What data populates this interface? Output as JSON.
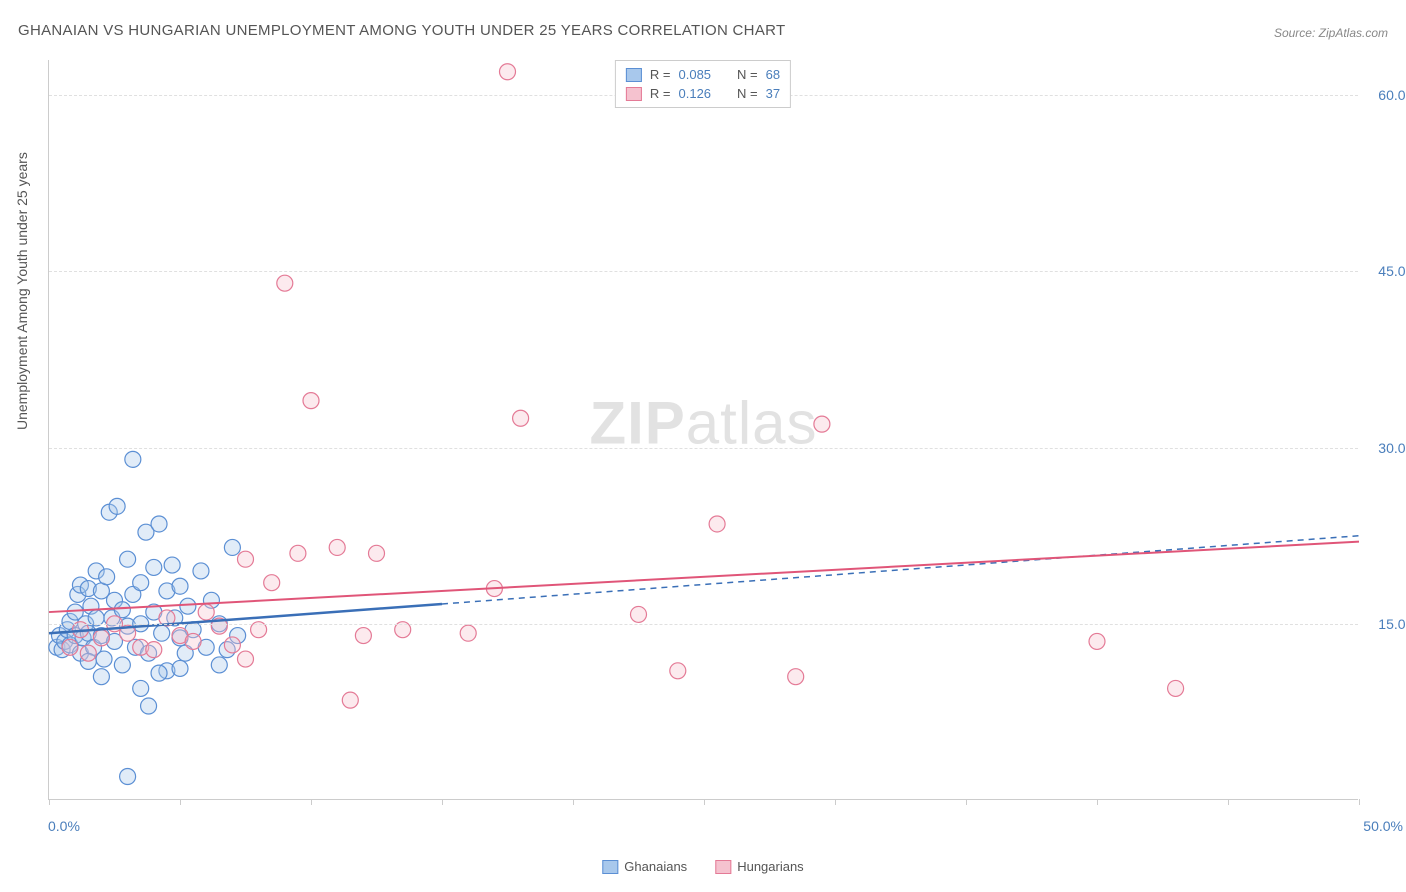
{
  "title": "GHANAIAN VS HUNGARIAN UNEMPLOYMENT AMONG YOUTH UNDER 25 YEARS CORRELATION CHART",
  "source": "Source: ZipAtlas.com",
  "y_axis_label": "Unemployment Among Youth under 25 years",
  "watermark_zip": "ZIP",
  "watermark_atlas": "atlas",
  "chart": {
    "type": "scatter-with-regression",
    "xlim": [
      0,
      50
    ],
    "ylim": [
      0,
      63
    ],
    "x_ticks": [
      0,
      5,
      10,
      15,
      20,
      25,
      30,
      35,
      40,
      45,
      50
    ],
    "x_tick_labels": {
      "0": "0.0%",
      "50": "50.0%"
    },
    "y_ticks": [
      15,
      30,
      45,
      60
    ],
    "y_tick_labels": {
      "15": "15.0%",
      "30": "30.0%",
      "45": "45.0%",
      "60": "60.0%"
    },
    "background_color": "#ffffff",
    "grid_color": "#e0e0e0",
    "axis_color": "#cccccc",
    "marker_radius": 8,
    "marker_stroke_width": 1.2,
    "marker_fill_opacity": 0.35,
    "series": [
      {
        "name": "Ghanaians",
        "color_fill": "#a8c8ec",
        "color_stroke": "#5b8fd4",
        "line_color": "#3a6fb7",
        "line_width": 2.5,
        "R": "0.085",
        "N": "68",
        "regression": {
          "x1": 0,
          "y1": 14.2,
          "x2": 50,
          "y2": 22.5,
          "solid_until_x": 15
        },
        "points": [
          [
            0.3,
            13.0
          ],
          [
            0.4,
            14.0
          ],
          [
            0.5,
            12.8
          ],
          [
            0.6,
            13.5
          ],
          [
            0.7,
            14.5
          ],
          [
            0.8,
            15.2
          ],
          [
            0.8,
            13.2
          ],
          [
            1.0,
            16.0
          ],
          [
            1.0,
            14.0
          ],
          [
            1.1,
            17.5
          ],
          [
            1.2,
            12.5
          ],
          [
            1.2,
            18.3
          ],
          [
            1.3,
            13.8
          ],
          [
            1.4,
            15.0
          ],
          [
            1.5,
            18.0
          ],
          [
            1.5,
            14.2
          ],
          [
            1.6,
            16.5
          ],
          [
            1.7,
            13.0
          ],
          [
            1.8,
            19.5
          ],
          [
            1.8,
            15.5
          ],
          [
            2.0,
            17.8
          ],
          [
            2.0,
            14.0
          ],
          [
            2.1,
            12.0
          ],
          [
            2.2,
            19.0
          ],
          [
            2.3,
            24.5
          ],
          [
            2.4,
            15.5
          ],
          [
            2.5,
            17.0
          ],
          [
            2.5,
            13.5
          ],
          [
            2.6,
            25.0
          ],
          [
            2.8,
            16.2
          ],
          [
            2.8,
            11.5
          ],
          [
            3.0,
            20.5
          ],
          [
            3.0,
            14.8
          ],
          [
            3.2,
            29.0
          ],
          [
            3.2,
            17.5
          ],
          [
            3.3,
            13.0
          ],
          [
            3.5,
            18.5
          ],
          [
            3.5,
            15.0
          ],
          [
            3.7,
            22.8
          ],
          [
            3.8,
            12.5
          ],
          [
            4.0,
            19.8
          ],
          [
            4.0,
            16.0
          ],
          [
            4.2,
            23.5
          ],
          [
            4.3,
            14.2
          ],
          [
            4.5,
            17.8
          ],
          [
            4.5,
            11.0
          ],
          [
            4.7,
            20.0
          ],
          [
            4.8,
            15.5
          ],
          [
            5.0,
            18.2
          ],
          [
            5.0,
            13.8
          ],
          [
            5.2,
            12.5
          ],
          [
            5.3,
            16.5
          ],
          [
            5.5,
            14.5
          ],
          [
            5.8,
            19.5
          ],
          [
            6.0,
            13.0
          ],
          [
            6.2,
            17.0
          ],
          [
            6.5,
            15.0
          ],
          [
            6.8,
            12.8
          ],
          [
            7.0,
            21.5
          ],
          [
            7.2,
            14.0
          ],
          [
            3.0,
            2.0
          ],
          [
            3.8,
            8.0
          ],
          [
            2.0,
            10.5
          ],
          [
            5.0,
            11.2
          ],
          [
            1.5,
            11.8
          ],
          [
            4.2,
            10.8
          ],
          [
            6.5,
            11.5
          ],
          [
            3.5,
            9.5
          ]
        ]
      },
      {
        "name": "Hungarians",
        "color_fill": "#f5c2cf",
        "color_stroke": "#e47a96",
        "line_color": "#e05578",
        "line_width": 2,
        "R": "0.126",
        "N": "37",
        "regression": {
          "x1": 0,
          "y1": 16.0,
          "x2": 50,
          "y2": 22.0,
          "solid_until_x": 50
        },
        "points": [
          [
            0.8,
            13.0
          ],
          [
            1.2,
            14.5
          ],
          [
            1.5,
            12.5
          ],
          [
            2.0,
            13.8
          ],
          [
            2.5,
            15.0
          ],
          [
            3.0,
            14.2
          ],
          [
            3.5,
            13.0
          ],
          [
            4.0,
            12.8
          ],
          [
            4.5,
            15.5
          ],
          [
            5.0,
            14.0
          ],
          [
            5.5,
            13.5
          ],
          [
            6.0,
            16.0
          ],
          [
            6.5,
            14.8
          ],
          [
            7.0,
            13.2
          ],
          [
            7.5,
            20.5
          ],
          [
            8.0,
            14.5
          ],
          [
            8.5,
            18.5
          ],
          [
            9.0,
            44.0
          ],
          [
            9.5,
            21.0
          ],
          [
            10.0,
            34.0
          ],
          [
            11.0,
            21.5
          ],
          [
            11.5,
            8.5
          ],
          [
            12.0,
            14.0
          ],
          [
            12.5,
            21.0
          ],
          [
            13.5,
            14.5
          ],
          [
            16.0,
            14.2
          ],
          [
            17.0,
            18.0
          ],
          [
            17.5,
            62.0
          ],
          [
            18.0,
            32.5
          ],
          [
            22.5,
            15.8
          ],
          [
            24.0,
            11.0
          ],
          [
            25.5,
            23.5
          ],
          [
            28.5,
            10.5
          ],
          [
            29.5,
            32.0
          ],
          [
            40.0,
            13.5
          ],
          [
            43.0,
            9.5
          ],
          [
            7.5,
            12.0
          ]
        ]
      }
    ]
  },
  "legend_top": {
    "r_label": "R =",
    "n_label": "N ="
  },
  "legend_bottom": [
    {
      "label": "Ghanaians",
      "fill": "#a8c8ec",
      "stroke": "#5b8fd4"
    },
    {
      "label": "Hungarians",
      "fill": "#f5c2cf",
      "stroke": "#e47a96"
    }
  ]
}
